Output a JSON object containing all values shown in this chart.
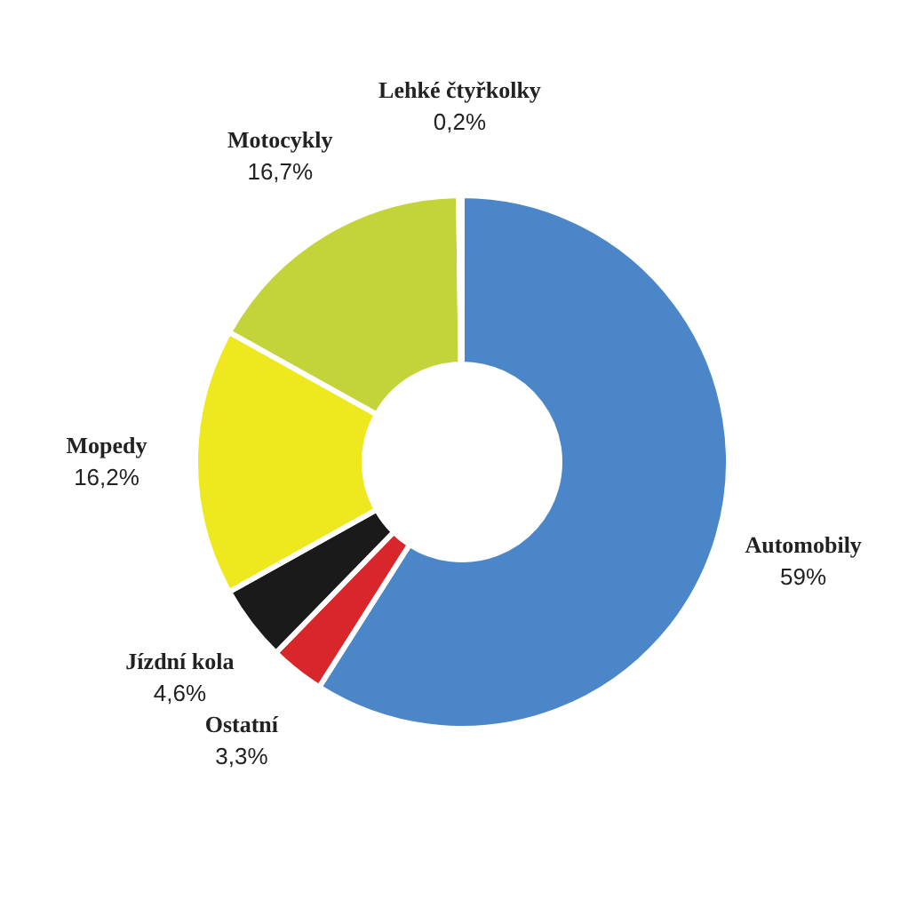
{
  "chart_data": {
    "type": "donut",
    "categories": [
      "Automobily",
      "Ostatní",
      "Jízdní kola",
      "Mopedy",
      "Motocykly",
      "Lehké čtyřkolky"
    ],
    "values": [
      59,
      3.3,
      4.6,
      16.2,
      16.7,
      0.2
    ],
    "value_labels": [
      "59%",
      "3,3%",
      "4,6%",
      "16,2%",
      "16,7%",
      "0,2%"
    ],
    "colors": [
      "#4a86c8",
      "#d9262b",
      "#1a1a1a",
      "#eee81e",
      "#c3d43a",
      "#4a4444"
    ],
    "legend": false
  }
}
